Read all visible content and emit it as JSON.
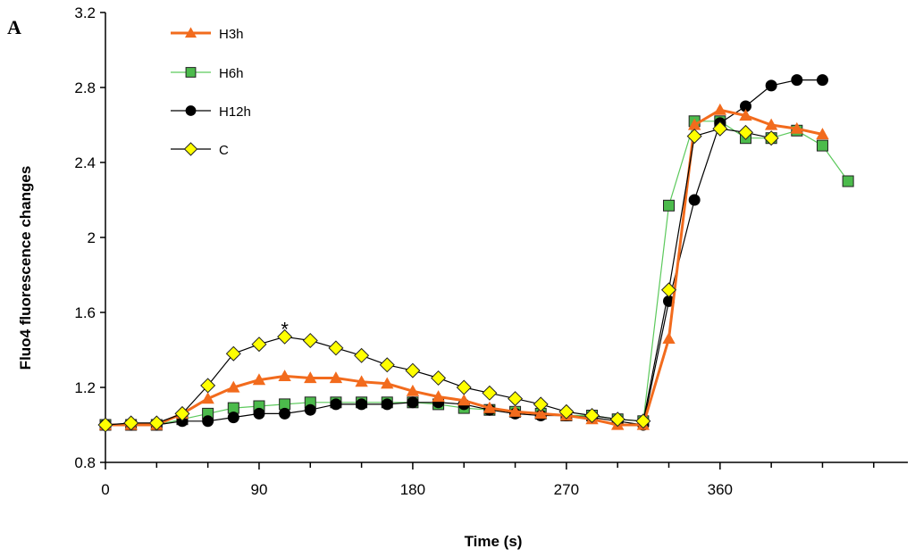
{
  "chart_data": {
    "type": "line",
    "panel_label": "A",
    "title": "",
    "xlabel": "Time (s)",
    "ylabel": "Fluo4  fluorescence  changes",
    "xlim": [
      0,
      470
    ],
    "ylim": [
      0.8,
      3.2
    ],
    "xticks": [
      0,
      90,
      180,
      270,
      360
    ],
    "yticks": [
      0.8,
      1.2,
      1.6,
      2,
      2.4,
      2.8,
      3.2
    ],
    "ytick_labels": [
      "0.8",
      "1.2",
      "1.6",
      "2",
      "2.4",
      "2.8",
      "3.2"
    ],
    "grid": false,
    "legend_position": "top-left",
    "annotations": [
      {
        "text": "*",
        "x": 105,
        "y": 1.54
      }
    ],
    "series": [
      {
        "name": "H3h",
        "color": "#F26B1D",
        "marker": "triangle",
        "marker_fill": "#F26B1D",
        "line_width": 3,
        "x": [
          0,
          15,
          30,
          45,
          60,
          75,
          90,
          105,
          120,
          135,
          150,
          165,
          180,
          195,
          210,
          225,
          240,
          255,
          270,
          285,
          300,
          315,
          330,
          345,
          360,
          375,
          390,
          405,
          420
        ],
        "y": [
          1.0,
          1.0,
          1.0,
          1.06,
          1.14,
          1.2,
          1.24,
          1.26,
          1.25,
          1.25,
          1.23,
          1.22,
          1.18,
          1.15,
          1.13,
          1.09,
          1.07,
          1.06,
          1.05,
          1.03,
          1.0,
          1.0,
          1.46,
          2.6,
          2.68,
          2.65,
          2.6,
          2.58,
          2.55
        ]
      },
      {
        "name": "H6h",
        "color": "#5CC95C",
        "marker": "square",
        "marker_fill": "#4CBB4C",
        "line_width": 1.2,
        "x": [
          0,
          15,
          30,
          45,
          60,
          75,
          90,
          105,
          120,
          135,
          150,
          165,
          180,
          195,
          210,
          225,
          240,
          255,
          270,
          285,
          300,
          315,
          330,
          345,
          360,
          375,
          390,
          405,
          420,
          435
        ],
        "y": [
          1.0,
          1.0,
          1.0,
          1.03,
          1.06,
          1.09,
          1.1,
          1.11,
          1.12,
          1.12,
          1.12,
          1.12,
          1.12,
          1.11,
          1.09,
          1.08,
          1.07,
          1.06,
          1.05,
          1.05,
          1.03,
          1.02,
          2.17,
          2.62,
          2.62,
          2.53,
          2.53,
          2.57,
          2.49,
          2.3
        ]
      },
      {
        "name": "H12h",
        "color": "#000000",
        "marker": "circle",
        "marker_fill": "#000000",
        "line_width": 1.2,
        "x": [
          0,
          15,
          30,
          45,
          60,
          75,
          90,
          105,
          120,
          135,
          150,
          165,
          180,
          195,
          210,
          225,
          240,
          255,
          270,
          285,
          300,
          315,
          330,
          345,
          360,
          375,
          390,
          405,
          420
        ],
        "y": [
          1.0,
          1.0,
          1.0,
          1.02,
          1.02,
          1.04,
          1.06,
          1.06,
          1.08,
          1.11,
          1.11,
          1.11,
          1.12,
          1.12,
          1.11,
          1.08,
          1.06,
          1.05,
          1.05,
          1.04,
          1.02,
          1.0,
          1.66,
          2.2,
          2.61,
          2.7,
          2.81,
          2.84,
          2.84
        ]
      },
      {
        "name": "C",
        "color": "#000000",
        "marker": "diamond",
        "marker_fill": "#FFFF00",
        "line_width": 1.2,
        "x": [
          0,
          15,
          30,
          45,
          60,
          75,
          90,
          105,
          120,
          135,
          150,
          165,
          180,
          195,
          210,
          225,
          240,
          255,
          270,
          285,
          300,
          315,
          330,
          345,
          360,
          375,
          390
        ],
        "y": [
          1.0,
          1.01,
          1.01,
          1.06,
          1.21,
          1.38,
          1.43,
          1.47,
          1.45,
          1.41,
          1.37,
          1.32,
          1.29,
          1.25,
          1.2,
          1.17,
          1.14,
          1.11,
          1.07,
          1.05,
          1.03,
          1.02,
          1.72,
          2.54,
          2.58,
          2.56,
          2.53
        ]
      }
    ]
  }
}
